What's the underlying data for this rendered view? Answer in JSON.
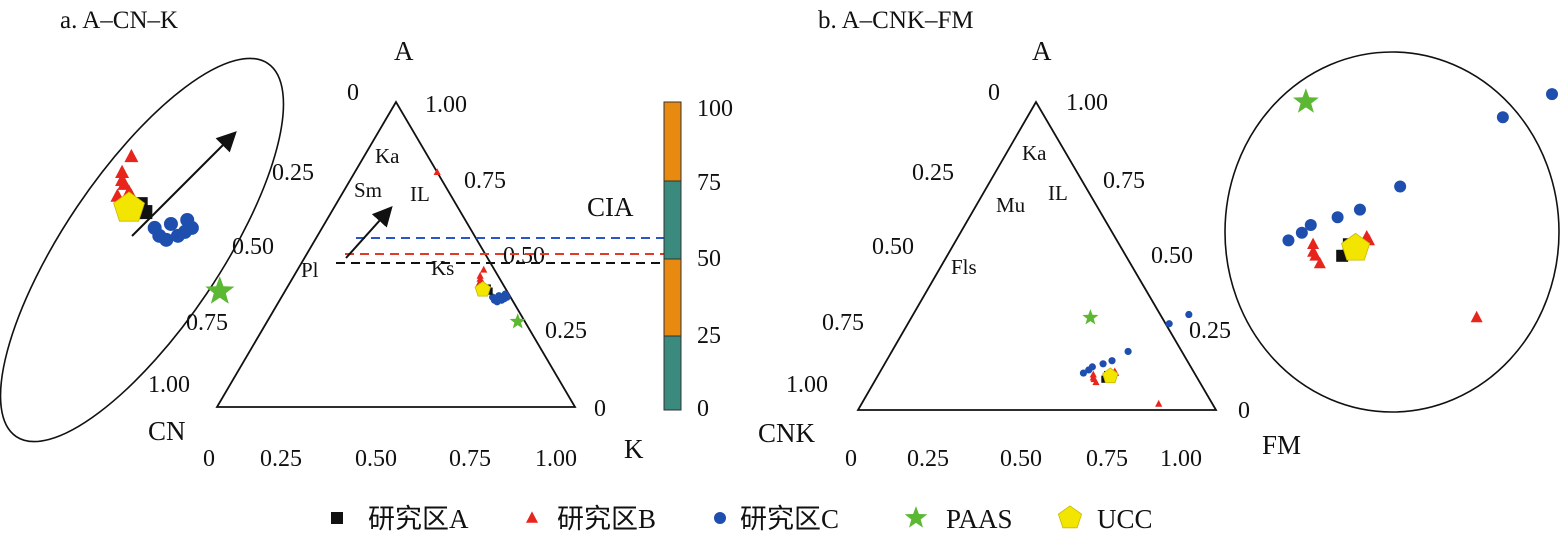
{
  "chart_data": [
    {
      "type": "scatter",
      "subtype": "ternary",
      "title": "a. A–CN–K",
      "vertices": {
        "top": "A",
        "left": "CN",
        "right": "K"
      },
      "left_ticks": [
        "0",
        "0.25",
        "0.50",
        "0.75",
        "1.00"
      ],
      "right_ticks": [
        "1.00",
        "0.75",
        "0.50",
        "0.25",
        "0"
      ],
      "bottom_ticks": [
        "0",
        "0.25",
        "0.50",
        "0.75",
        "1.00"
      ],
      "minerals": [
        "Ka",
        "Sm",
        "IL",
        "Ks",
        "Pl"
      ],
      "cia_scale": {
        "label": "CIA",
        "ticks": [
          "0",
          "25",
          "50",
          "75",
          "100"
        ],
        "orange": [
          [
            25,
            50
          ],
          [
            75,
            100
          ]
        ],
        "teal": [
          [
            0,
            25
          ],
          [
            50,
            75
          ]
        ]
      },
      "series": [
        {
          "name": "研究区A",
          "marker": "square",
          "color": "#111111",
          "points": [
            [
              0.57,
              0.38
            ],
            [
              0.56,
              0.38
            ],
            [
              0.56,
              0.39
            ],
            [
              0.555,
              0.385
            ]
          ]
        },
        {
          "name": "研究区B",
          "marker": "triangle",
          "color": "#e8251c",
          "points": [
            [
              0.545,
              0.4
            ],
            [
              0.54,
              0.405
            ],
            [
              0.53,
              0.4
            ],
            [
              0.53,
              0.415
            ],
            [
              0.525,
              0.42
            ],
            [
              0.52,
              0.43
            ],
            [
              0.52,
              0.45
            ],
            [
              0.23,
              0.77
            ]
          ]
        },
        {
          "name": "研究区C",
          "marker": "circle",
          "color": "#1f4fae",
          "points": [
            [
              0.59,
              0.36
            ],
            [
              0.6,
              0.35
            ],
            [
              0.61,
              0.345
            ],
            [
              0.62,
              0.35
            ],
            [
              0.625,
              0.355
            ],
            [
              0.63,
              0.36
            ],
            [
              0.62,
              0.37
            ],
            [
              0.605,
              0.365
            ]
          ]
        },
        {
          "name": "PAAS",
          "marker": "star",
          "color": "#5cb832",
          "points": [
            [
              0.7,
              0.28
            ]
          ]
        },
        {
          "name": "UCC",
          "marker": "pentagon",
          "color": "#f2e600",
          "points": [
            [
              0.55,
              0.385
            ]
          ]
        }
      ]
    },
    {
      "type": "scatter",
      "subtype": "ternary",
      "title": "b. A–CNK–FM",
      "vertices": {
        "top": "A",
        "left": "CNK",
        "right": "FM"
      },
      "left_ticks": [
        "0",
        "0.25",
        "0.50",
        "0.75",
        "1.00"
      ],
      "right_ticks": [
        "1.00",
        "0.75",
        "0.50",
        "0.25",
        "0"
      ],
      "bottom_ticks": [
        "0",
        "0.25",
        "0.50",
        "0.75",
        "1.00"
      ],
      "minerals": [
        "Ka",
        "Mu",
        "IL",
        "Fls"
      ],
      "series": [
        {
          "name": "研究区A",
          "marker": "square",
          "color": "#111111",
          "points": [
            [
              0.64,
              0.1
            ],
            [
              0.645,
              0.105
            ],
            [
              0.64,
              0.115
            ]
          ]
        },
        {
          "name": "研究区B",
          "marker": "triangle",
          "color": "#e8251c",
          "points": [
            [
              0.62,
              0.09
            ],
            [
              0.61,
              0.1
            ],
            [
              0.6,
              0.115
            ],
            [
              0.605,
              0.105
            ],
            [
              0.66,
              0.12
            ],
            [
              0.655,
              0.125
            ],
            [
              0.83,
              0.02
            ]
          ]
        },
        {
          "name": "研究区C",
          "marker": "circle",
          "color": "#1f4fae",
          "points": [
            [
              0.57,
              0.12
            ],
            [
              0.58,
              0.13
            ],
            [
              0.585,
              0.14
            ],
            [
              0.61,
              0.15
            ],
            [
              0.63,
              0.16
            ],
            [
              0.66,
              0.19
            ],
            [
              0.73,
              0.28
            ],
            [
              0.77,
              0.31
            ]
          ]
        },
        {
          "name": "PAAS",
          "marker": "star",
          "color": "#5cb832",
          "points": [
            [
              0.5,
              0.3
            ]
          ]
        },
        {
          "name": "UCC",
          "marker": "pentagon",
          "color": "#f2e600",
          "points": [
            [
              0.65,
              0.11
            ]
          ]
        }
      ]
    }
  ],
  "legend": [
    {
      "label": "研究区A",
      "marker": "square",
      "color": "#111111"
    },
    {
      "label": "研究区B",
      "marker": "triangle",
      "color": "#e8251c"
    },
    {
      "label": "研究区C",
      "marker": "circle",
      "color": "#1f4fae"
    },
    {
      "label": "PAAS",
      "marker": "star",
      "color": "#5cb832"
    },
    {
      "label": "UCC",
      "marker": "pentagon",
      "color": "#f2e600"
    }
  ]
}
